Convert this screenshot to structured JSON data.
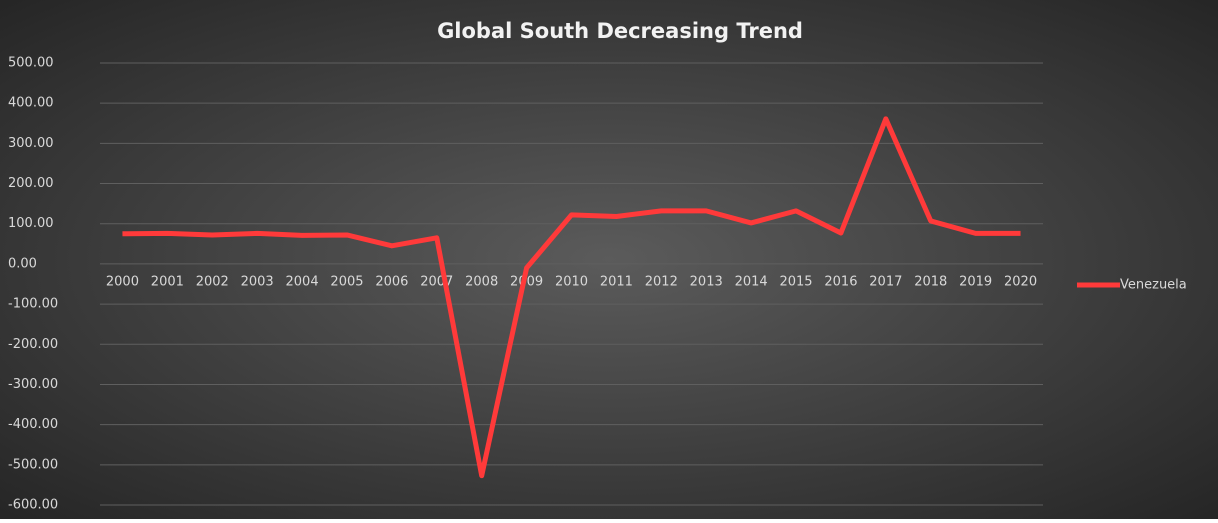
{
  "chart_data": {
    "type": "line",
    "title": "Global South Decreasing Trend",
    "categories": [
      "2000",
      "2001",
      "2002",
      "2003",
      "2004",
      "2005",
      "2006",
      "2007",
      "2008",
      "2009",
      "2010",
      "2011",
      "2012",
      "2013",
      "2014",
      "2015",
      "2016",
      "2017",
      "2018",
      "2019",
      "2020"
    ],
    "series": [
      {
        "name": "Venezuela",
        "color": "#ff3a3a",
        "values": [
          75,
          76,
          72,
          76,
          71,
          72,
          45,
          65,
          -527,
          -10,
          122,
          118,
          132,
          132,
          102,
          132,
          77,
          361,
          107,
          76,
          76
        ]
      }
    ],
    "ylim": [
      -600,
      500
    ],
    "yticks": [
      {
        "value": -600,
        "label": "-600.00"
      },
      {
        "value": -500,
        "label": "-500.00"
      },
      {
        "value": -400,
        "label": "-400.00"
      },
      {
        "value": -300,
        "label": "-300.00"
      },
      {
        "value": -200,
        "label": "-200.00"
      },
      {
        "value": -100,
        "label": "-100.00"
      },
      {
        "value": 0,
        "label": "0.00"
      },
      {
        "value": 100,
        "label": "100.00"
      },
      {
        "value": 200,
        "label": "200.00"
      },
      {
        "value": 300,
        "label": "300.00"
      },
      {
        "value": 400,
        "label": "400.00"
      },
      {
        "value": 500,
        "label": "500.00"
      }
    ],
    "grid": true,
    "legend": "right"
  }
}
